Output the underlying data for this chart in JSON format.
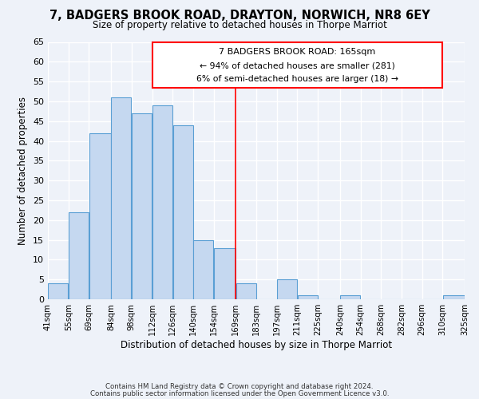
{
  "title": "7, BADGERS BROOK ROAD, DRAYTON, NORWICH, NR8 6EY",
  "subtitle": "Size of property relative to detached houses in Thorpe Marriot",
  "xlabel": "Distribution of detached houses by size in Thorpe Marriot",
  "ylabel": "Number of detached properties",
  "bar_edges": [
    41,
    55,
    69,
    84,
    98,
    112,
    126,
    140,
    154,
    169,
    183,
    197,
    211,
    225,
    240,
    254,
    268,
    282,
    296,
    310,
    325
  ],
  "bar_heights": [
    4,
    22,
    42,
    51,
    47,
    49,
    44,
    15,
    13,
    4,
    0,
    5,
    1,
    0,
    1,
    0,
    0,
    0,
    0,
    1
  ],
  "bar_color": "#c5d8f0",
  "bar_edge_color": "#5a9fd4",
  "reference_line_x": 169,
  "ylim": [
    0,
    65
  ],
  "xlim": [
    41,
    325
  ],
  "annotation_title": "7 BADGERS BROOK ROAD: 165sqm",
  "annotation_line1": "← 94% of detached houses are smaller (281)",
  "annotation_line2": "6% of semi-detached houses are larger (18) →",
  "footer_line1": "Contains HM Land Registry data © Crown copyright and database right 2024.",
  "footer_line2": "Contains public sector information licensed under the Open Government Licence v3.0.",
  "tick_labels": [
    "41sqm",
    "55sqm",
    "69sqm",
    "84sqm",
    "98sqm",
    "112sqm",
    "126sqm",
    "140sqm",
    "154sqm",
    "169sqm",
    "183sqm",
    "197sqm",
    "211sqm",
    "225sqm",
    "240sqm",
    "254sqm",
    "268sqm",
    "282sqm",
    "296sqm",
    "310sqm",
    "325sqm"
  ],
  "background_color": "#eef2f9"
}
